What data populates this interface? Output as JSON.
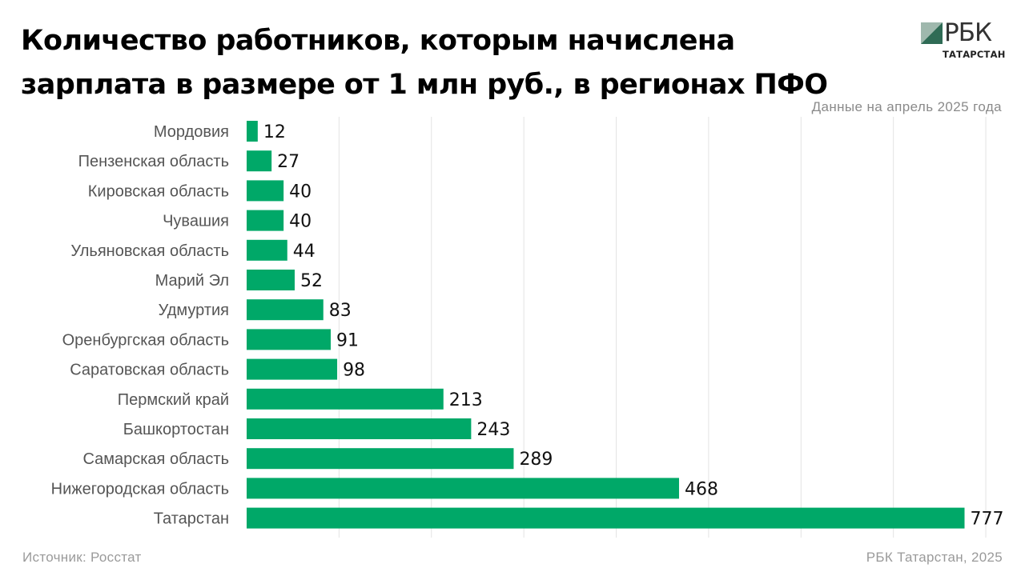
{
  "header": {
    "title_line1": "Количество работников, которым начислена",
    "title_line2": "зарплата в размере от 1 млн руб., в регионах ПФО",
    "subtitle": "Данные на апрель 2025 года"
  },
  "logo": {
    "text": "РБК",
    "sub": "ТАТАРСТАН",
    "icon": "rbc-logo-icon"
  },
  "footer": {
    "source": "Источник: Росстат",
    "credit": "РБК Татарстан, 2025"
  },
  "colors": {
    "bar": "#00a868",
    "grid": "#e3e3e3",
    "label": "#555555",
    "value": "#111111"
  },
  "chart_data": {
    "type": "bar",
    "orientation": "horizontal",
    "categories": [
      "Мордовия",
      "Пензенская область",
      "Кировская область",
      "Чувашия",
      "Ульяновская область",
      "Марий Эл",
      "Удмуртия",
      "Оренбургская область",
      "Саратовская область",
      "Пермский край",
      "Башкортостан",
      "Самарская область",
      "Нижегородская область",
      "Татарстан"
    ],
    "values": [
      12,
      27,
      40,
      40,
      44,
      52,
      83,
      91,
      98,
      213,
      243,
      289,
      468,
      777
    ],
    "xlim": [
      0,
      800
    ],
    "grid": true,
    "data_labels": true
  }
}
